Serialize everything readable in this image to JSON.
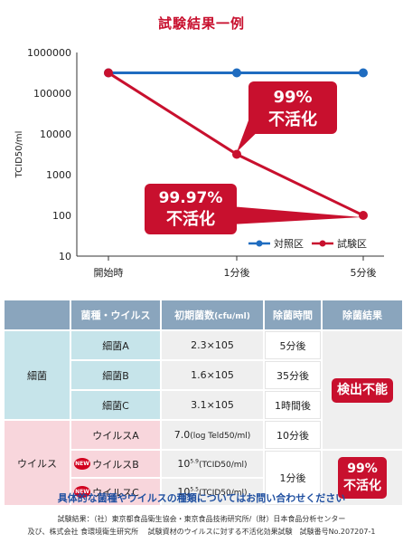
{
  "title": "試験結果一例",
  "chart_data": {
    "type": "line",
    "scale": "log",
    "ylabel": "TCID50/ml",
    "xlabel": "",
    "categories": [
      "開始時",
      "1分後",
      "5分後"
    ],
    "yticks": [
      "1000000",
      "100000",
      "10000",
      "1000",
      "100",
      "10"
    ],
    "ylim": [
      10,
      1000000
    ],
    "grid": false,
    "legend_position": "bottom-right",
    "series": [
      {
        "name": "対照区",
        "color": "#1f6cc0",
        "values": [
          316000,
          316000,
          316000
        ]
      },
      {
        "name": "試験区",
        "color": "#c8102e",
        "values": [
          316000,
          3160,
          100
        ]
      }
    ],
    "annotations": [
      {
        "line1": "99%",
        "line2": "不活化"
      },
      {
        "line1": "99.97%",
        "line2": "不活化"
      }
    ]
  },
  "table": {
    "headers": [
      "菌種・ウイルス",
      "初期菌数",
      "(cfu/ml)",
      "除菌時間",
      "除菌結果"
    ],
    "bacteria_label": "細菌",
    "virus_label": "ウイルス",
    "new_badge": "NEW",
    "rows": [
      {
        "organism": "細菌A",
        "count": "2.3×105",
        "time": "5分後"
      },
      {
        "organism": "細菌B",
        "count": "1.6×105",
        "time": "35分後"
      },
      {
        "organism": "細菌C",
        "count": "3.1×105",
        "time": "1時間後"
      },
      {
        "organism": "ウイルスA",
        "count": "7.0",
        "count_note": "(log Teld50/ml)",
        "time": "10分後"
      },
      {
        "organism": "ウイルスB",
        "count_base": "10",
        "count_exp": "5.9",
        "count_note": "(TCID50/ml)",
        "time": "1分後"
      },
      {
        "organism": "ウイルスC",
        "count_base": "10",
        "count_exp": "5.5",
        "count_note": "(TCID50/ml)"
      }
    ],
    "result_bacteria": "検出不能",
    "result_virus_line1": "99%",
    "result_virus_line2": "不活化"
  },
  "inquiry": "具体的な菌種やウイルスの種類についてはお問い合わせください",
  "footer": [
    "試験結果：（社）東京都食品衛生協会・東京食品技術研究所/（財）日本食品分析センター",
    "及び、株式会社 食環境衛生研究所　 試験資材のウイルスに対する不活化効果試験　試験番号No.207207-1"
  ]
}
